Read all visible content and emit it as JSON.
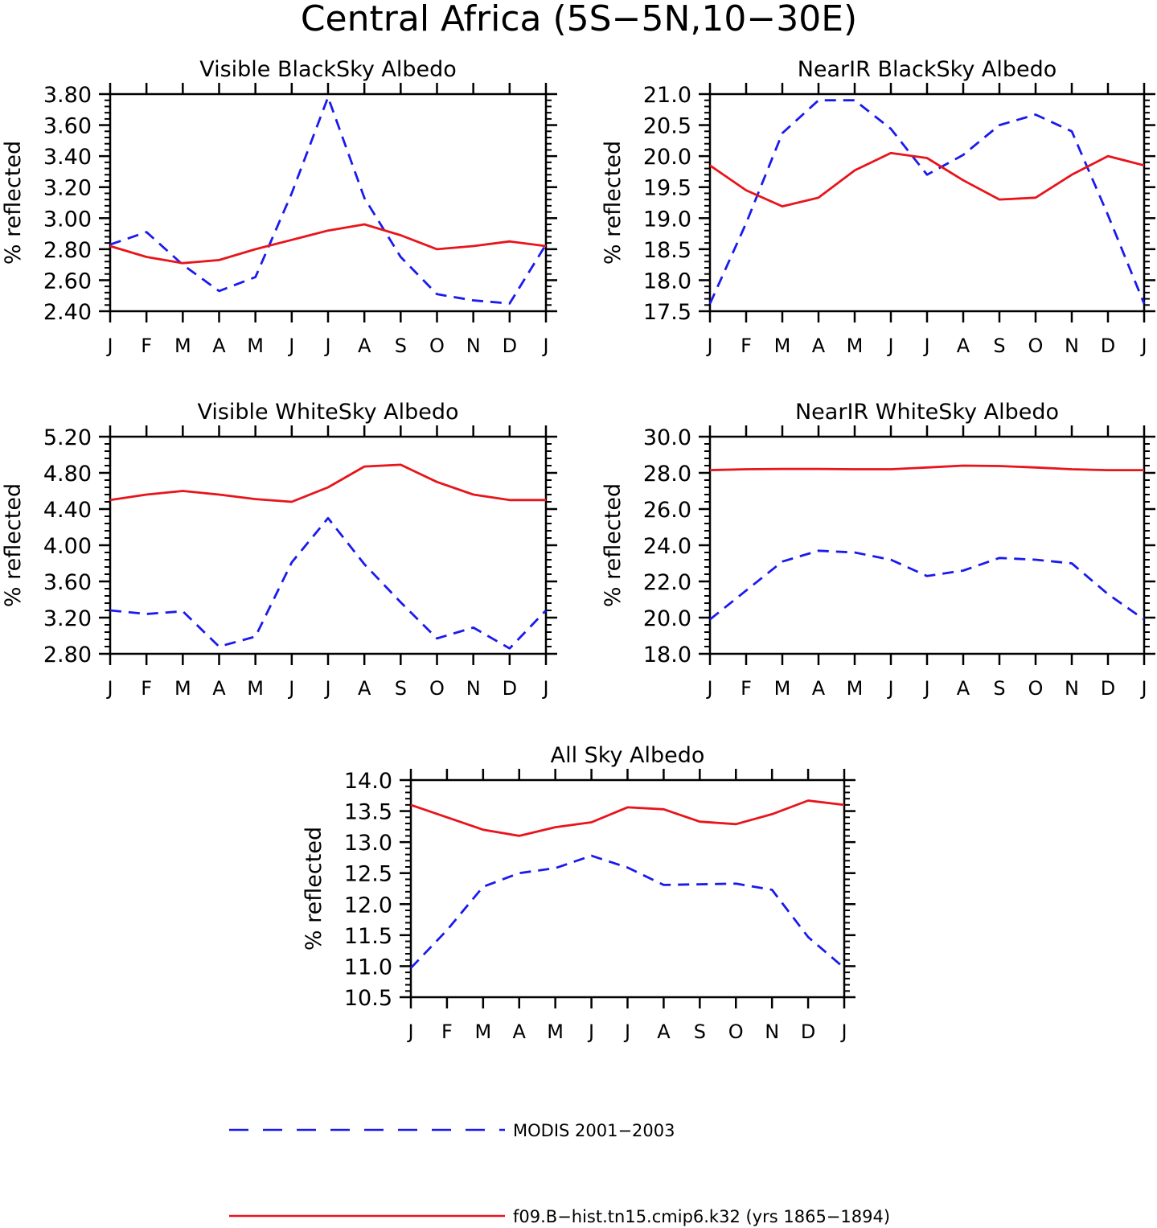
{
  "figure_title": "Central Africa (5S−5N,10−30E)",
  "months": [
    "J",
    "F",
    "M",
    "A",
    "M",
    "J",
    "J",
    "A",
    "S",
    "O",
    "N",
    "D",
    "J"
  ],
  "colors": {
    "modis": "#1a1aee",
    "model": "#e8141b",
    "axis": "#000000"
  },
  "legend": {
    "modis": "MODIS 2001−2003",
    "model": "f09.B−hist.tn15.cmip6.k32 (yrs 1865−1894)"
  },
  "chart_data": [
    {
      "type": "line",
      "title": "Visible BlackSky Albedo",
      "ylabel": "% reflected",
      "ylim": [
        2.4,
        3.8
      ],
      "yticks": [
        "2.40",
        "2.60",
        "2.80",
        "3.00",
        "3.20",
        "3.40",
        "3.60",
        "3.80"
      ],
      "x": [
        "J",
        "F",
        "M",
        "A",
        "M",
        "J",
        "J",
        "A",
        "S",
        "O",
        "N",
        "D",
        "J"
      ],
      "series": [
        {
          "name": "MODIS 2001−2003",
          "style": "dashed",
          "values": [
            2.83,
            2.91,
            2.7,
            2.53,
            2.62,
            3.16,
            3.78,
            3.13,
            2.75,
            2.51,
            2.47,
            2.45,
            2.83
          ]
        },
        {
          "name": "f09.B−hist.tn15.cmip6.k32 (yrs 1865−1894)",
          "style": "solid",
          "values": [
            2.82,
            2.75,
            2.71,
            2.73,
            2.8,
            2.86,
            2.92,
            2.96,
            2.89,
            2.8,
            2.82,
            2.85,
            2.82
          ]
        }
      ]
    },
    {
      "type": "line",
      "title": "NearIR BlackSky Albedo",
      "ylabel": "% reflected",
      "ylim": [
        17.5,
        21.0
      ],
      "yticks": [
        "17.5",
        "18.0",
        "18.5",
        "19.0",
        "19.5",
        "20.0",
        "20.5",
        "21.0"
      ],
      "x": [
        "J",
        "F",
        "M",
        "A",
        "M",
        "J",
        "J",
        "A",
        "S",
        "O",
        "N",
        "D",
        "J"
      ],
      "series": [
        {
          "name": "MODIS 2001−2003",
          "style": "dashed",
          "values": [
            17.62,
            18.92,
            20.37,
            20.9,
            20.9,
            20.44,
            19.7,
            20.02,
            20.5,
            20.67,
            20.4,
            19.05,
            17.62
          ]
        },
        {
          "name": "f09.B−hist.tn15.cmip6.k32 (yrs 1865−1894)",
          "style": "solid",
          "values": [
            19.85,
            19.45,
            19.19,
            19.33,
            19.77,
            20.05,
            19.97,
            19.61,
            19.3,
            19.33,
            19.7,
            20.0,
            19.85
          ]
        }
      ]
    },
    {
      "type": "line",
      "title": "Visible WhiteSky Albedo",
      "ylabel": "% reflected",
      "ylim": [
        2.8,
        5.2
      ],
      "yticks": [
        "2.80",
        "3.20",
        "3.60",
        "4.00",
        "4.40",
        "4.80",
        "5.20"
      ],
      "x": [
        "J",
        "F",
        "M",
        "A",
        "M",
        "J",
        "J",
        "A",
        "S",
        "O",
        "N",
        "D",
        "J"
      ],
      "series": [
        {
          "name": "MODIS 2001−2003",
          "style": "dashed",
          "values": [
            3.28,
            3.24,
            3.27,
            2.88,
            2.99,
            3.81,
            4.3,
            3.79,
            3.37,
            2.97,
            3.09,
            2.86,
            3.28
          ]
        },
        {
          "name": "f09.B−hist.tn15.cmip6.k32 (yrs 1865−1894)",
          "style": "solid",
          "values": [
            4.5,
            4.56,
            4.6,
            4.56,
            4.51,
            4.48,
            4.64,
            4.87,
            4.89,
            4.7,
            4.56,
            4.5,
            4.5
          ]
        }
      ]
    },
    {
      "type": "line",
      "title": "NearIR WhiteSky Albedo",
      "ylabel": "% reflected",
      "ylim": [
        18.0,
        30.0
      ],
      "yticks": [
        "18.0",
        "20.0",
        "22.0",
        "24.0",
        "26.0",
        "28.0",
        "30.0"
      ],
      "x": [
        "J",
        "F",
        "M",
        "A",
        "M",
        "J",
        "J",
        "A",
        "S",
        "O",
        "N",
        "D",
        "J"
      ],
      "series": [
        {
          "name": "MODIS 2001−2003",
          "style": "dashed",
          "values": [
            19.9,
            21.5,
            23.1,
            23.7,
            23.6,
            23.2,
            22.3,
            22.6,
            23.3,
            23.2,
            23.0,
            21.3,
            19.9
          ]
        },
        {
          "name": "f09.B−hist.tn15.cmip6.k32 (yrs 1865−1894)",
          "style": "solid",
          "values": [
            28.15,
            28.2,
            28.22,
            28.22,
            28.2,
            28.2,
            28.3,
            28.4,
            28.38,
            28.3,
            28.2,
            28.15,
            28.15
          ]
        }
      ]
    },
    {
      "type": "line",
      "title": "All Sky Albedo",
      "ylabel": "% reflected",
      "ylim": [
        10.5,
        14.0
      ],
      "yticks": [
        "10.5",
        "11.0",
        "11.5",
        "12.0",
        "12.5",
        "13.0",
        "13.5",
        "14.0"
      ],
      "x": [
        "J",
        "F",
        "M",
        "A",
        "M",
        "J",
        "J",
        "A",
        "S",
        "O",
        "N",
        "D",
        "J"
      ],
      "series": [
        {
          "name": "MODIS 2001−2003",
          "style": "dashed",
          "values": [
            10.97,
            11.58,
            12.28,
            12.5,
            12.58,
            12.78,
            12.59,
            12.31,
            12.32,
            12.33,
            12.23,
            11.47,
            10.97
          ]
        },
        {
          "name": "f09.B−hist.tn15.cmip6.k32 (yrs 1865−1894)",
          "style": "solid",
          "values": [
            13.6,
            13.4,
            13.2,
            13.1,
            13.24,
            13.32,
            13.56,
            13.53,
            13.33,
            13.29,
            13.45,
            13.67,
            13.6
          ]
        }
      ]
    }
  ]
}
